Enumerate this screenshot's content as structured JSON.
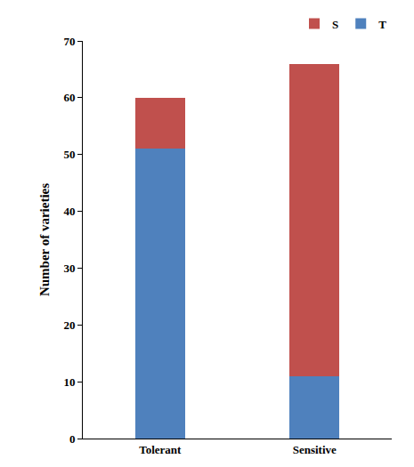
{
  "chart_data": {
    "type": "bar",
    "categories": [
      "Tolerant",
      "Sensitive"
    ],
    "series": [
      {
        "name": "T",
        "color": "#4f81bd",
        "values": [
          51,
          11
        ]
      },
      {
        "name": "S",
        "color": "#c0504d",
        "values": [
          9,
          55
        ]
      }
    ],
    "y_label": "Number of varieties",
    "ylim": [
      0,
      70
    ],
    "yticks": [
      0,
      10,
      20,
      30,
      40,
      50,
      60,
      70
    ],
    "stacked": true,
    "grid": false,
    "legend": "top right"
  }
}
